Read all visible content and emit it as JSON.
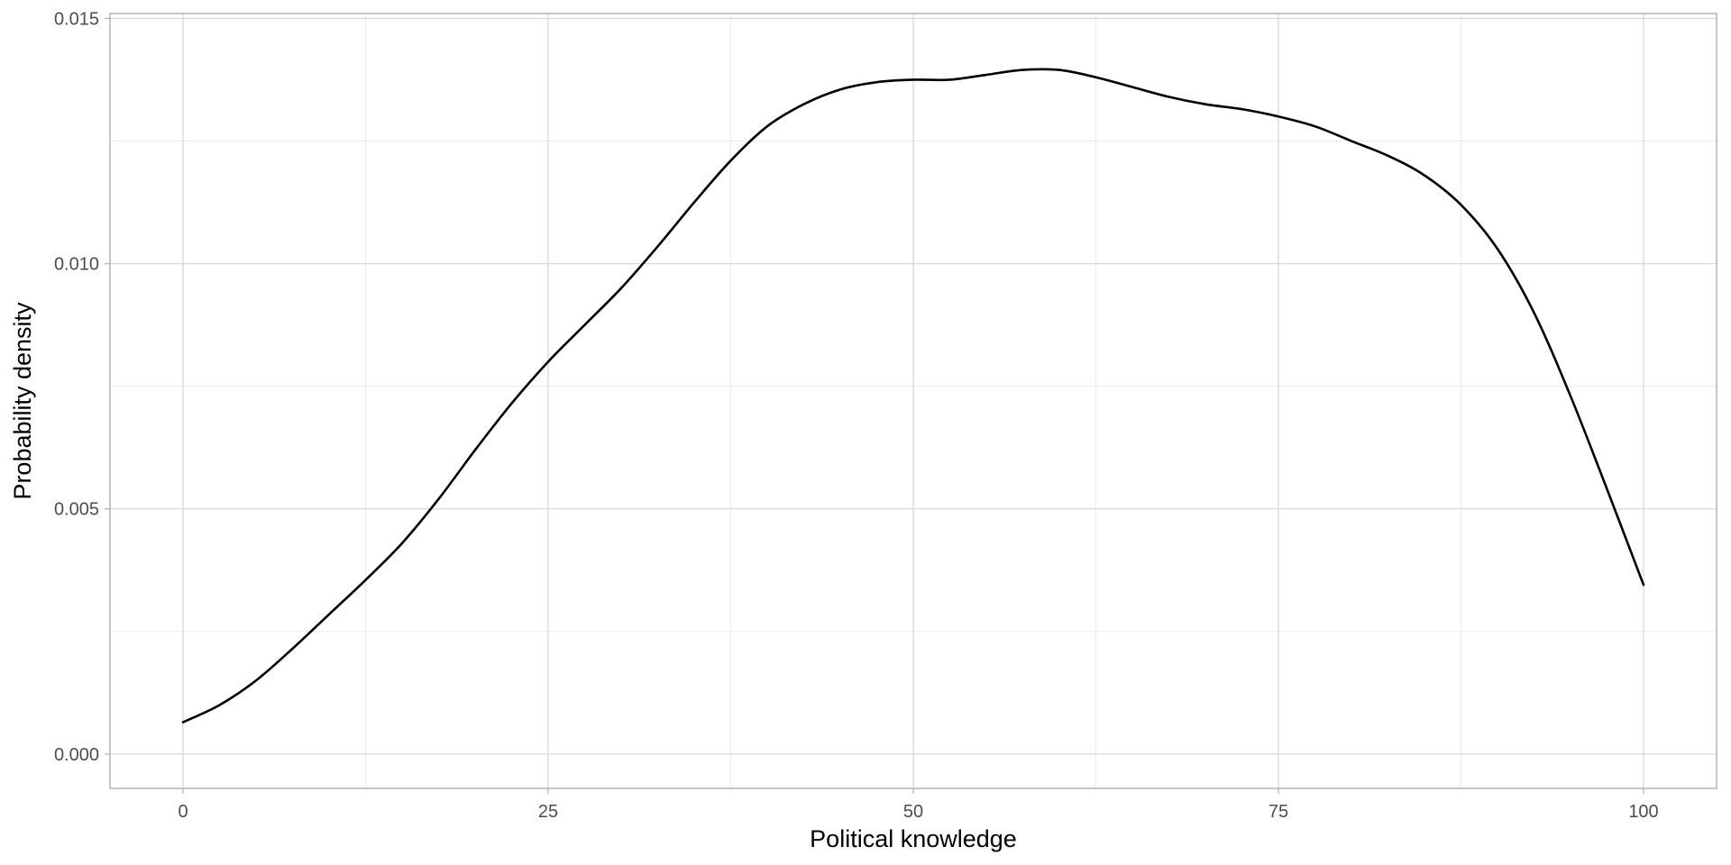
{
  "chart_data": {
    "type": "line",
    "title": "",
    "xlabel": "Political knowledge",
    "ylabel": "Probability density",
    "xlim": [
      -5,
      105
    ],
    "ylim": [
      -0.0007,
      0.0151
    ],
    "x_ticks": [
      0,
      25,
      50,
      75,
      100
    ],
    "x_tick_labels": [
      "0",
      "25",
      "50",
      "75",
      "100"
    ],
    "y_ticks": [
      0.0,
      0.005,
      0.01,
      0.015
    ],
    "y_tick_labels": [
      "0.000",
      "0.005",
      "0.010",
      "0.015"
    ],
    "grid": true,
    "legend": "none",
    "colors": {
      "line": "#000000",
      "grid_major": "#d9d9d9",
      "grid_minor": "#ebebeb",
      "panel_border": "#b3b3b3"
    },
    "series": [
      {
        "x": [
          0,
          2.5,
          5,
          7.5,
          10,
          12.5,
          15,
          17.5,
          20,
          22.5,
          25,
          27.5,
          30,
          32.5,
          35,
          37.5,
          40,
          42.5,
          45,
          47.5,
          50,
          52.5,
          55,
          57.5,
          60,
          62.5,
          65,
          67.5,
          70,
          72.5,
          75,
          77.5,
          80,
          82.5,
          85,
          87.5,
          90,
          92.5,
          95,
          97.5,
          100
        ],
        "y": [
          0.00065,
          0.001,
          0.0015,
          0.00215,
          0.00285,
          0.00355,
          0.0043,
          0.0052,
          0.0062,
          0.00715,
          0.008,
          0.00875,
          0.0095,
          0.01035,
          0.01125,
          0.0121,
          0.0128,
          0.01325,
          0.01355,
          0.0137,
          0.01375,
          0.01375,
          0.01385,
          0.01395,
          0.01395,
          0.0138,
          0.0136,
          0.0134,
          0.01325,
          0.01315,
          0.013,
          0.0128,
          0.0125,
          0.0122,
          0.0118,
          0.0112,
          0.0103,
          0.009,
          0.0073,
          0.0054,
          0.00345
        ]
      }
    ]
  }
}
